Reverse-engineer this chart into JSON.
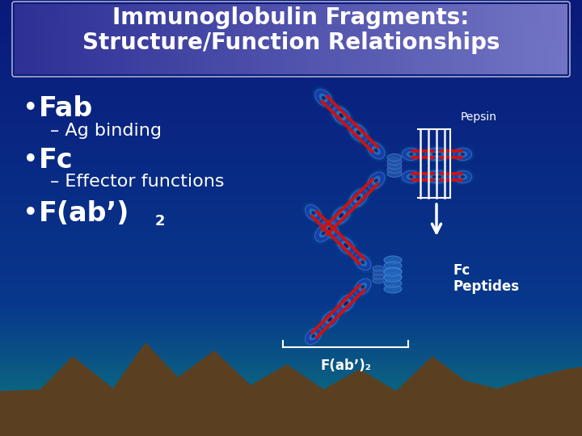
{
  "title_line1": "Immunoglobulin Fragments:",
  "title_line2": "Structure/Function Relationships",
  "title_fontsize": 20,
  "bullet1": "Fab",
  "sub1": "– Ag binding",
  "bullet2": "Fc",
  "sub2": "– Effector functions",
  "bullet3_main": "F(ab’)",
  "bullet3_sub": "2",
  "pepsin_label": "Pepsin",
  "fc_label": "Fc\nPeptides",
  "fab2_label": "F(ab’)₂",
  "text_color": "#ffffff",
  "mountain_color": "#5a4020",
  "teal_color": "#00ccaa",
  "bg_color_top": "#0a1a7a",
  "bg_color_mid": "#0a2090",
  "bg_color_bot": "#0a7070",
  "title_box_color": "#4455aa",
  "domain_face": "#1a3faa",
  "domain_edge": "#3366cc",
  "domain_glow": "#2299cc",
  "domain_teal_glow": "#00aa99",
  "red_bond": "#cc1111",
  "pepsin_line_color": "#ffffff"
}
